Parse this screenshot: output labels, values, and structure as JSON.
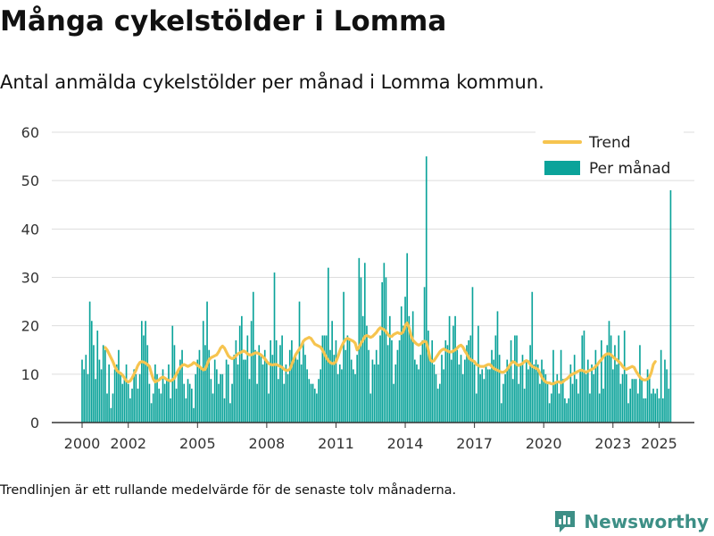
{
  "page": {
    "title": "Många cykelstölder i Lomma",
    "subtitle": "Antal anmälda cykelstölder per månad i Lomma kommun.",
    "footnote": "Trendlinjen är ett rullande medelvärde för de senaste tolv månaderna.",
    "brand": "Newsworthy"
  },
  "colors": {
    "bar": "#0ba39a",
    "trend": "#f6c44f",
    "grid": "#dddddd",
    "axis": "#333333",
    "brand": "#3d8f86"
  },
  "chart_data": {
    "type": "bar",
    "x_start": "2000-01",
    "x_end": "2025-07",
    "y_range": [
      0,
      60
    ],
    "y_ticks": [
      0,
      10,
      20,
      30,
      40,
      50,
      60
    ],
    "x_ticks": [
      {
        "label": "2000",
        "date": "2000-01"
      },
      {
        "label": "2002",
        "date": "2002-01"
      },
      {
        "label": "2005",
        "date": "2005-01"
      },
      {
        "label": "2008",
        "date": "2008-01"
      },
      {
        "label": "2011",
        "date": "2011-01"
      },
      {
        "label": "2014",
        "date": "2014-01"
      },
      {
        "label": "2017",
        "date": "2017-01"
      },
      {
        "label": "2020",
        "date": "2020-01"
      },
      {
        "label": "2023",
        "date": "2023-01"
      },
      {
        "label": "2025",
        "date": "2025-01"
      }
    ],
    "grid": true,
    "legend": {
      "position": "top-right",
      "entries": [
        {
          "name": "Trend",
          "kind": "line"
        },
        {
          "name": "Per månad",
          "kind": "bar"
        }
      ]
    },
    "series": [
      {
        "name": "Per månad",
        "kind": "bar",
        "values": [
          13,
          11,
          14,
          10,
          25,
          21,
          16,
          9,
          19,
          13,
          11,
          16,
          15,
          6,
          12,
          3,
          6,
          11,
          12,
          15,
          10,
          8,
          9,
          12,
          8,
          5,
          7,
          11,
          10,
          7,
          10,
          21,
          18,
          21,
          16,
          8,
          4,
          6,
          12,
          10,
          7,
          6,
          11,
          8,
          9,
          12,
          5,
          20,
          16,
          7,
          11,
          13,
          15,
          8,
          5,
          9,
          8,
          7,
          3,
          10,
          13,
          15,
          11,
          21,
          16,
          25,
          15,
          9,
          6,
          13,
          11,
          8,
          10,
          10,
          5,
          13,
          12,
          4,
          8,
          14,
          17,
          12,
          20,
          22,
          13,
          13,
          18,
          9,
          21,
          27,
          15,
          8,
          16,
          14,
          12,
          15,
          13,
          6,
          17,
          14,
          31,
          17,
          9,
          16,
          18,
          8,
          12,
          10,
          15,
          17,
          13,
          14,
          13,
          25,
          12,
          17,
          14,
          11,
          9,
          8,
          8,
          7,
          6,
          9,
          11,
          18,
          18,
          18,
          32,
          15,
          21,
          14,
          17,
          10,
          12,
          11,
          27,
          15,
          18,
          17,
          13,
          11,
          10,
          14,
          34,
          30,
          22,
          33,
          20,
          15,
          6,
          13,
          12,
          15,
          12,
          18,
          29,
          33,
          30,
          16,
          22,
          17,
          8,
          12,
          15,
          17,
          24,
          20,
          26,
          35,
          22,
          18,
          23,
          13,
          12,
          11,
          14,
          17,
          28,
          55,
          19,
          13,
          17,
          12,
          10,
          7,
          8,
          14,
          11,
          17,
          16,
          22,
          13,
          20,
          22,
          15,
          12,
          14,
          10,
          13,
          16,
          17,
          18,
          28,
          12,
          6,
          20,
          10,
          11,
          9,
          12,
          11,
          11,
          15,
          13,
          18,
          23,
          14,
          4,
          8,
          10,
          13,
          12,
          17,
          9,
          18,
          18,
          8,
          12,
          14,
          7,
          13,
          11,
          16,
          27,
          12,
          13,
          12,
          8,
          13,
          11,
          10,
          8,
          4,
          6,
          15,
          8,
          10,
          6,
          15,
          9,
          5,
          4,
          5,
          12,
          8,
          14,
          9,
          6,
          11,
          18,
          19,
          10,
          13,
          6,
          12,
          10,
          15,
          12,
          6,
          17,
          7,
          14,
          16,
          21,
          18,
          11,
          16,
          12,
          18,
          8,
          10,
          19,
          10,
          4,
          7,
          9,
          9,
          9,
          6,
          16,
          9,
          5,
          5,
          11,
          10,
          6,
          7,
          6,
          7,
          5,
          15,
          5,
          13,
          11,
          7,
          48
        ]
      },
      {
        "name": "Trend",
        "kind": "line",
        "start": "2001-01",
        "values": [
          15.5,
          15.0,
          14.2,
          13.4,
          12.6,
          11.6,
          10.8,
          10.4,
          10.2,
          9.8,
          9.2,
          8.6,
          8.4,
          8.6,
          9.2,
          10.0,
          10.8,
          11.8,
          12.4,
          12.6,
          12.5,
          12.3,
          12.0,
          11.6,
          10.2,
          9.0,
          8.4,
          8.6,
          8.8,
          9.2,
          9.4,
          9.2,
          8.9,
          8.7,
          8.6,
          8.8,
          9.2,
          10.0,
          10.8,
          11.4,
          11.8,
          12.0,
          11.8,
          11.6,
          11.8,
          12.0,
          12.4,
          12.2,
          11.8,
          11.6,
          11.2,
          10.9,
          11.0,
          12.0,
          13.0,
          13.4,
          13.6,
          13.8,
          14.0,
          14.6,
          15.4,
          15.8,
          15.4,
          14.6,
          13.8,
          13.4,
          13.2,
          13.4,
          13.8,
          14.2,
          14.4,
          14.6,
          14.8,
          14.6,
          14.2,
          14.0,
          14.0,
          14.2,
          14.4,
          14.4,
          14.2,
          14.0,
          13.6,
          13.2,
          12.6,
          12.2,
          12.0,
          11.9,
          12.0,
          12.0,
          11.8,
          11.6,
          11.4,
          11.0,
          10.8,
          10.8,
          11.0,
          12.0,
          13.0,
          14.0,
          14.6,
          15.2,
          15.8,
          16.8,
          17.2,
          17.4,
          17.6,
          17.4,
          16.8,
          16.2,
          16.0,
          15.8,
          15.6,
          15.0,
          14.2,
          13.4,
          12.8,
          12.4,
          12.2,
          12.2,
          12.6,
          13.6,
          14.8,
          15.8,
          16.6,
          17.2,
          17.4,
          17.2,
          17.0,
          16.8,
          16.4,
          15.0,
          15.6,
          16.4,
          17.0,
          17.8,
          18.0,
          17.8,
          17.6,
          17.8,
          18.2,
          18.6,
          19.2,
          19.6,
          19.4,
          19.2,
          18.8,
          18.2,
          17.8,
          17.8,
          18.2,
          18.4,
          18.6,
          18.4,
          18.4,
          18.8,
          20.0,
          20.6,
          19.6,
          18.0,
          17.0,
          16.6,
          16.2,
          16.0,
          16.2,
          16.6,
          16.8,
          16.6,
          15.0,
          13.0,
          12.6,
          12.8,
          13.4,
          14.0,
          14.6,
          15.0,
          15.2,
          15.0,
          14.8,
          14.6,
          14.6,
          14.8,
          15.0,
          15.4,
          15.8,
          16.0,
          15.6,
          14.8,
          14.2,
          13.4,
          13.0,
          12.8,
          12.6,
          12.0,
          11.8,
          11.6,
          11.6,
          11.6,
          11.8,
          12.0,
          12.0,
          11.6,
          11.2,
          11.0,
          10.8,
          10.6,
          10.4,
          10.4,
          10.6,
          11.0,
          11.6,
          12.2,
          12.6,
          12.4,
          12.0,
          11.8,
          12.0,
          12.2,
          12.6,
          12.8,
          12.6,
          12.0,
          11.6,
          11.4,
          11.2,
          11.0,
          10.2,
          9.4,
          8.8,
          8.4,
          8.2,
          8.2,
          8.0,
          8.0,
          8.2,
          8.4,
          8.4,
          8.2,
          8.4,
          8.8,
          9.0,
          9.4,
          9.8,
          10.0,
          10.2,
          10.4,
          10.6,
          10.8,
          10.8,
          10.6,
          10.4,
          10.6,
          10.8,
          11.0,
          11.2,
          11.6,
          12.0,
          12.6,
          13.0,
          13.6,
          14.0,
          14.2,
          14.2,
          14.0,
          13.6,
          13.2,
          13.0,
          12.6,
          12.2,
          11.6,
          11.2,
          11.0,
          11.2,
          11.4,
          11.6,
          11.4,
          10.6,
          10.0,
          9.4,
          9.0,
          8.8,
          8.8,
          9.0,
          9.4,
          10.4,
          12.0,
          12.6
        ]
      }
    ]
  }
}
